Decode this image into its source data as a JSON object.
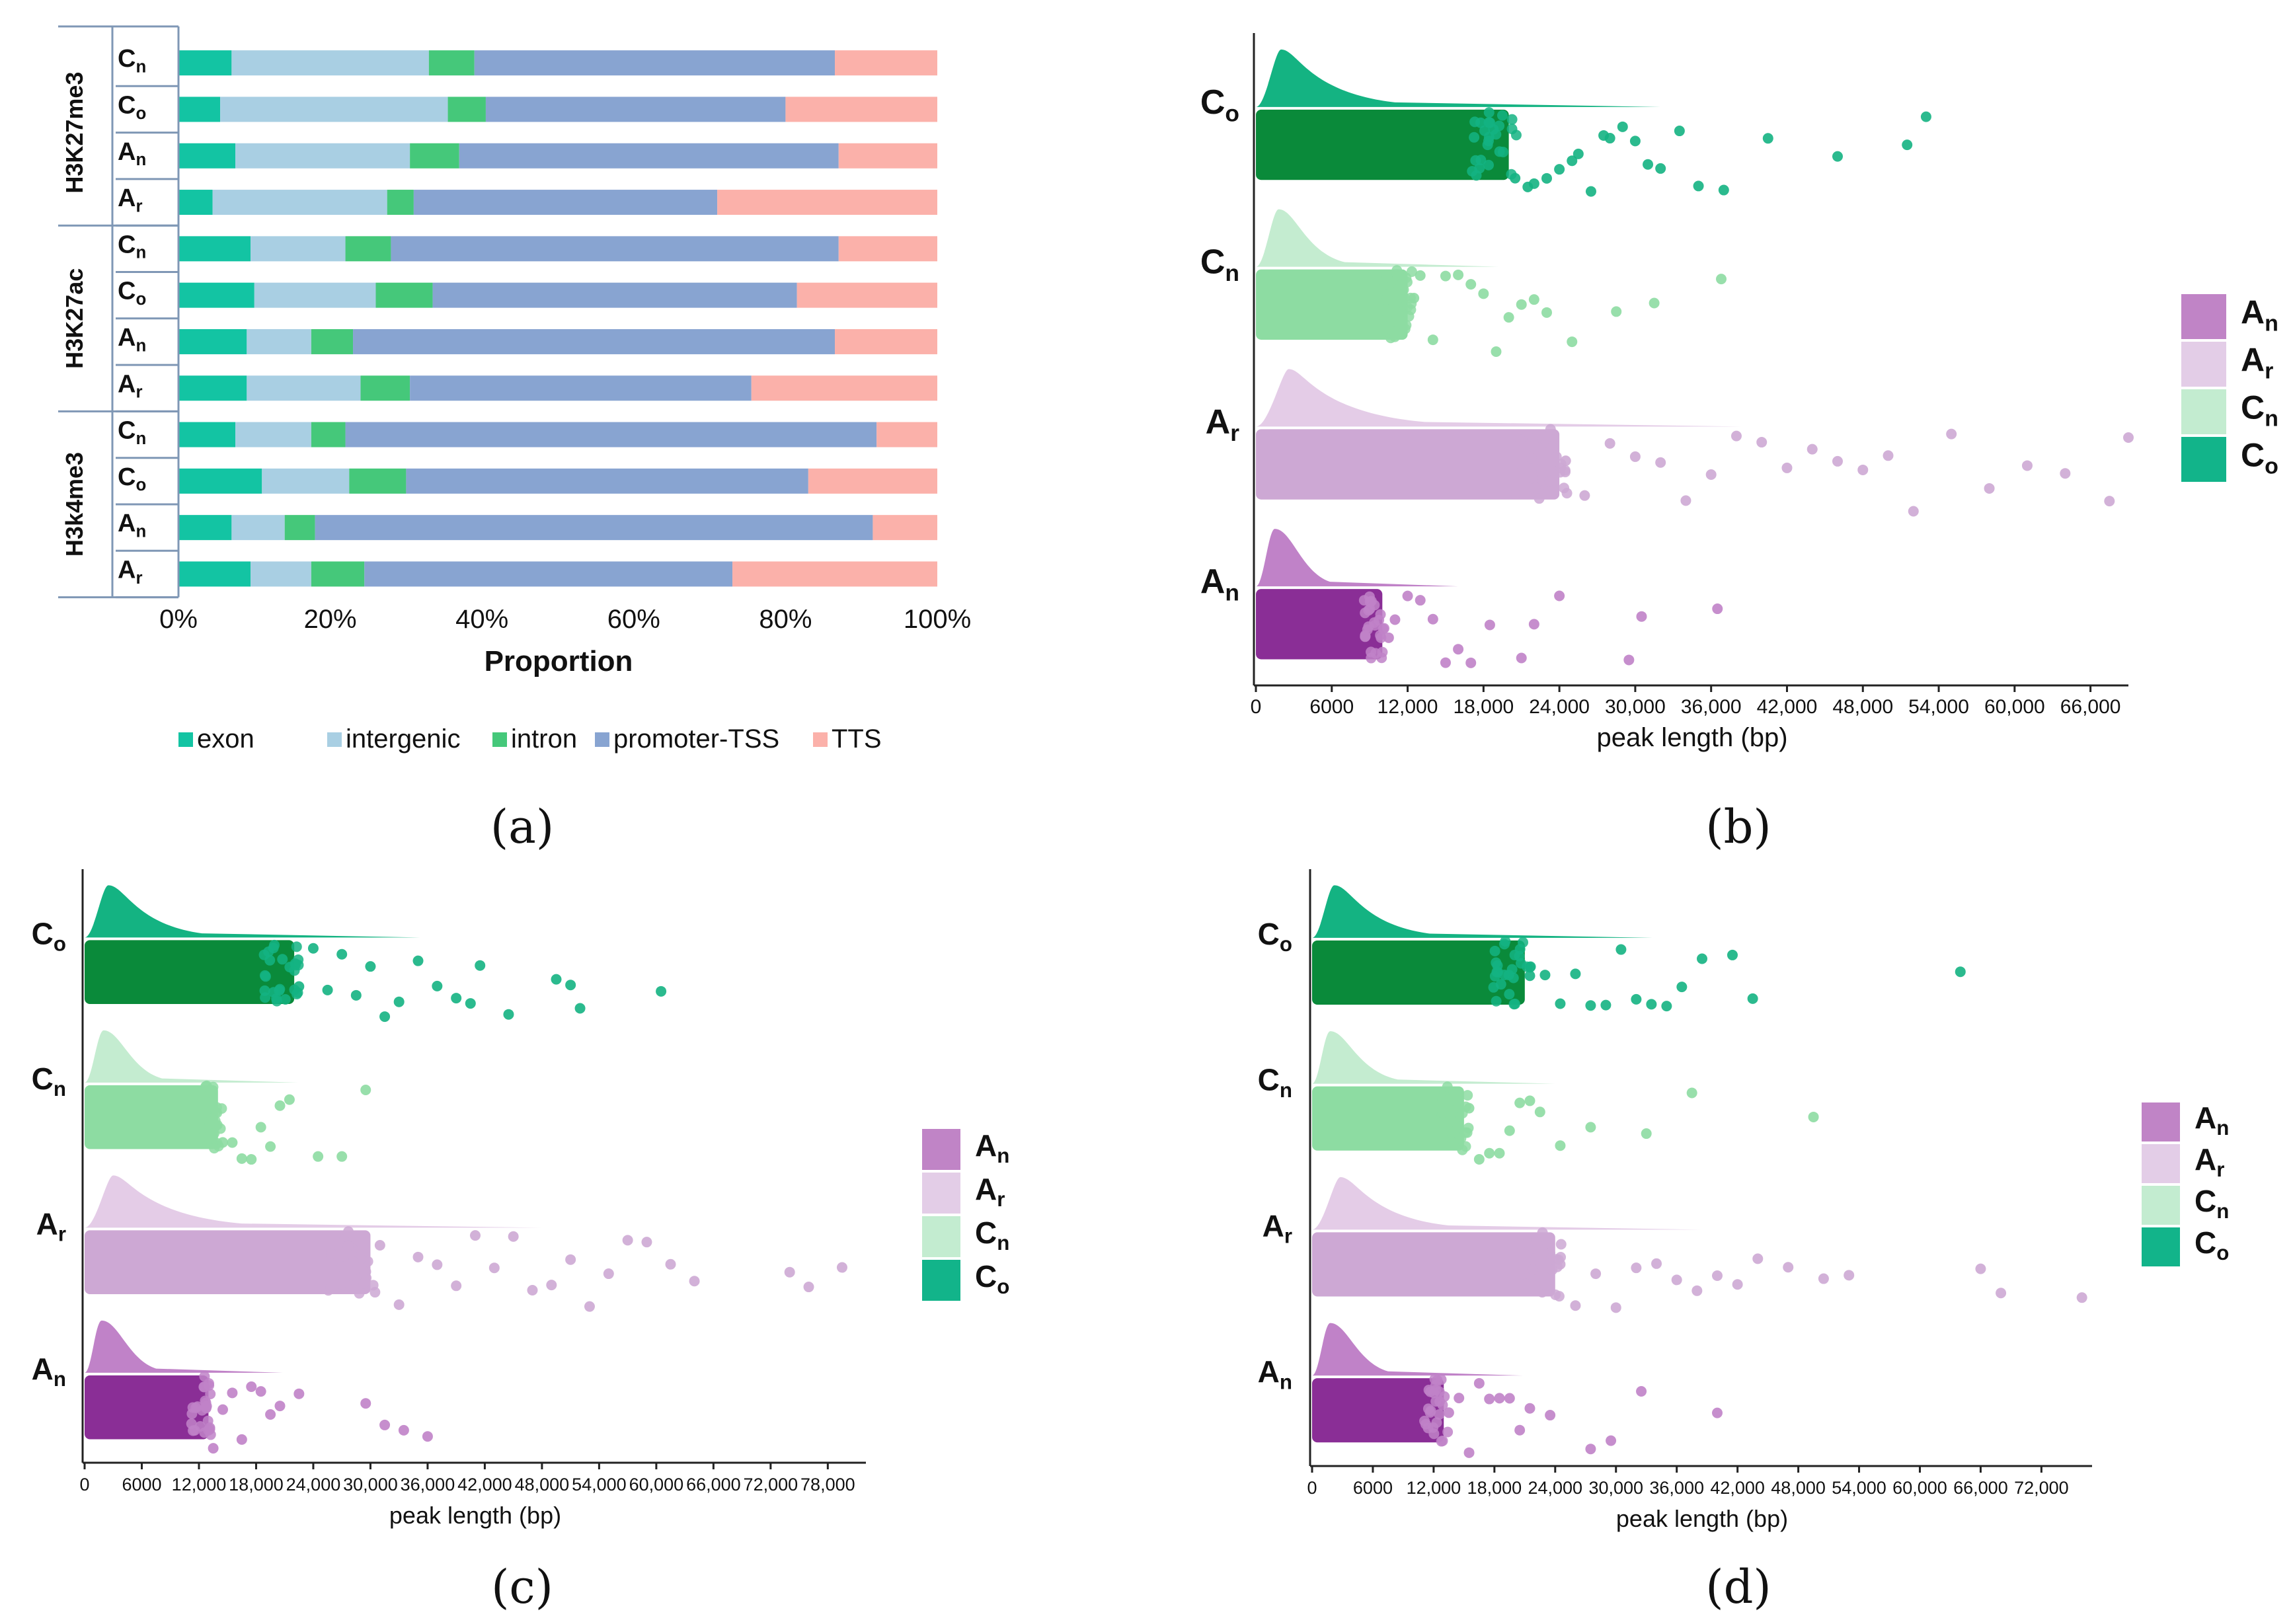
{
  "colors": {
    "exon": "#13c4a3",
    "intergenic": "#a9cfe3",
    "intron": "#45c87a",
    "promoter": "#88a4d1",
    "tts": "#fbb1aa",
    "Co": "#0a8a3a",
    "Co_light": "#14b382",
    "Cn": "#8ddca2",
    "Cn_light": "#c4ecd0",
    "Ar": "#cda8d4",
    "Ar_light": "#e4cce7",
    "An": "#8a2e96",
    "An_light": "#c082c8",
    "leg_An": "#c084c6",
    "leg_Ar": "#e3cde7",
    "leg_Cn": "#c3ecd0",
    "leg_Co": "#12b48a"
  },
  "panel_labels": {
    "a": "(a)",
    "b": "(b)",
    "c": "(c)",
    "d": "(d)"
  },
  "chart_data": [
    {
      "panel": "a",
      "type": "bar",
      "orientation": "horizontal-stacked-100",
      "xlabel": "Proportion",
      "xticks": [
        "0%",
        "20%",
        "40%",
        "60%",
        "80%",
        "100%"
      ],
      "xlim": [
        0,
        100
      ],
      "legend": [
        "exon",
        "intergenic",
        "intron",
        "promoter-TSS",
        "TTS"
      ],
      "legend_position": "bottom",
      "groups": [
        {
          "mark": "H3K27me3",
          "rows": [
            {
              "sample": "C",
              "sub": "n",
              "values": [
                7,
                26,
                6,
                47.5,
                13.5
              ]
            },
            {
              "sample": "C",
              "sub": "o",
              "values": [
                5.5,
                30,
                5,
                39.5,
                20
              ]
            },
            {
              "sample": "A",
              "sub": "n",
              "values": [
                7.5,
                23,
                6.5,
                50,
                13
              ]
            },
            {
              "sample": "A",
              "sub": "r",
              "values": [
                4.5,
                23,
                3.5,
                40,
                29
              ]
            }
          ]
        },
        {
          "mark": "H3K27ac",
          "rows": [
            {
              "sample": "C",
              "sub": "n",
              "values": [
                9.5,
                12.5,
                6,
                59,
                13
              ]
            },
            {
              "sample": "C",
              "sub": "o",
              "values": [
                10,
                16,
                7.5,
                48,
                18.5
              ]
            },
            {
              "sample": "A",
              "sub": "n",
              "values": [
                9,
                8.5,
                5.5,
                63.5,
                13.5
              ]
            },
            {
              "sample": "A",
              "sub": "r",
              "values": [
                9,
                15,
                6.5,
                45,
                24.5
              ]
            }
          ]
        },
        {
          "mark": "H3k4me3",
          "rows": [
            {
              "sample": "C",
              "sub": "n",
              "values": [
                7.5,
                10,
                4.5,
                70,
                8
              ]
            },
            {
              "sample": "C",
              "sub": "o",
              "values": [
                11,
                11.5,
                7.5,
                53,
                17
              ]
            },
            {
              "sample": "A",
              "sub": "n",
              "values": [
                7,
                7,
                4,
                73.5,
                8.5
              ]
            },
            {
              "sample": "A",
              "sub": "r",
              "values": [
                9.5,
                8,
                7,
                48.5,
                27
              ]
            }
          ]
        }
      ]
    },
    {
      "panel": "b",
      "type": "scatter",
      "subtype": "raincloud",
      "xlabel": "peak length (bp)",
      "xlim": [
        0,
        69000
      ],
      "xticks": [
        0,
        6000,
        12000,
        18000,
        24000,
        30000,
        36000,
        42000,
        48000,
        54000,
        60000,
        66000
      ],
      "xtick_labels": [
        "0",
        "6000",
        "12,000",
        "18,000",
        "24,000",
        "30,000",
        "36,000",
        "42,000",
        "48,000",
        "54,000",
        "60,000",
        "66,000"
      ],
      "legend": [
        {
          "sample": "A",
          "sub": "n"
        },
        {
          "sample": "A",
          "sub": "r"
        },
        {
          "sample": "C",
          "sub": "n"
        },
        {
          "sample": "C",
          "sub": "o"
        }
      ],
      "legend_position": "right",
      "groups": [
        {
          "sample": "C",
          "sub": "o",
          "dense_end": 20000,
          "mode": 2000,
          "outliers": [
            20500,
            21500,
            22000,
            23000,
            24000,
            25000,
            25500,
            26500,
            27500,
            28000,
            29000,
            30000,
            31000,
            32000,
            33500,
            35000,
            37000,
            40500,
            46000,
            51500,
            53000
          ]
        },
        {
          "sample": "C",
          "sub": "n",
          "dense_end": 12000,
          "mode": 1800,
          "outliers": [
            12500,
            13000,
            14000,
            15000,
            16000,
            17000,
            18000,
            19000,
            20000,
            21000,
            22000,
            23000,
            25000,
            28500,
            31500,
            36800
          ]
        },
        {
          "sample": "A",
          "sub": "r",
          "dense_end": 24000,
          "mode": 2600,
          "outliers": [
            24500,
            26000,
            28000,
            30000,
            32000,
            34000,
            36000,
            38000,
            40000,
            42000,
            44000,
            46000,
            48000,
            50000,
            52000,
            55000,
            58000,
            61000,
            64000,
            67500,
            69000
          ]
        },
        {
          "sample": "A",
          "sub": "n",
          "dense_end": 10000,
          "mode": 1500,
          "outliers": [
            10500,
            11000,
            12000,
            13000,
            14000,
            15000,
            16000,
            17000,
            18500,
            21000,
            22000,
            24000,
            29500,
            30500,
            36500
          ]
        }
      ]
    },
    {
      "panel": "c",
      "type": "scatter",
      "subtype": "raincloud",
      "xlabel": "peak length (bp)",
      "xlim": [
        0,
        82000
      ],
      "xticks": [
        0,
        6000,
        12000,
        18000,
        24000,
        30000,
        36000,
        42000,
        48000,
        54000,
        60000,
        66000,
        72000,
        78000
      ],
      "xtick_labels": [
        "0",
        "6000",
        "12,000",
        "18,000",
        "24,000",
        "30,000",
        "36,000",
        "42,000",
        "48,000",
        "54,000",
        "60,000",
        "66,000",
        "72,000",
        "78,000"
      ],
      "legend": [
        {
          "sample": "A",
          "sub": "n"
        },
        {
          "sample": "A",
          "sub": "r"
        },
        {
          "sample": "C",
          "sub": "n"
        },
        {
          "sample": "C",
          "sub": "o"
        }
      ],
      "legend_position": "right",
      "groups": [
        {
          "sample": "C",
          "sub": "o",
          "dense_end": 22000,
          "mode": 2500,
          "outliers": [
            22500,
            24000,
            25500,
            27000,
            28500,
            30000,
            31500,
            33000,
            35000,
            37000,
            39000,
            40500,
            41500,
            44500,
            49500,
            51000,
            52000,
            60500
          ]
        },
        {
          "sample": "C",
          "sub": "n",
          "dense_end": 14000,
          "mode": 2000,
          "outliers": [
            14500,
            15500,
            16500,
            17500,
            18500,
            19500,
            20500,
            21500,
            24500,
            27000,
            29500
          ]
        },
        {
          "sample": "A",
          "sub": "r",
          "dense_end": 30000,
          "mode": 3000,
          "outliers": [
            31000,
            33000,
            35000,
            37000,
            39000,
            41000,
            43000,
            45000,
            47000,
            49000,
            51000,
            53000,
            55000,
            57000,
            59000,
            61500,
            64000,
            74000,
            76000,
            79500
          ]
        },
        {
          "sample": "A",
          "sub": "n",
          "dense_end": 13000,
          "mode": 1800,
          "outliers": [
            13500,
            14500,
            15500,
            16500,
            17500,
            18500,
            19500,
            20500,
            22500,
            29500,
            31500,
            33500,
            36000
          ]
        }
      ]
    },
    {
      "panel": "d",
      "type": "scatter",
      "subtype": "raincloud",
      "xlabel": "peak length (bp)",
      "xlim": [
        0,
        77000
      ],
      "xticks": [
        0,
        6000,
        12000,
        18000,
        24000,
        30000,
        36000,
        42000,
        48000,
        54000,
        60000,
        66000,
        72000
      ],
      "xtick_labels": [
        "0",
        "6000",
        "12,000",
        "18,000",
        "24,000",
        "30,000",
        "36,000",
        "42,000",
        "48,000",
        "54,000",
        "60,000",
        "66,000",
        "72,000"
      ],
      "legend": [
        {
          "sample": "A",
          "sub": "n"
        },
        {
          "sample": "A",
          "sub": "r"
        },
        {
          "sample": "C",
          "sub": "n"
        },
        {
          "sample": "C",
          "sub": "o"
        }
      ],
      "legend_position": "right",
      "groups": [
        {
          "sample": "C",
          "sub": "o",
          "dense_end": 21000,
          "mode": 2200,
          "outliers": [
            21500,
            23000,
            24500,
            26000,
            27500,
            29000,
            30500,
            32000,
            33500,
            35000,
            36500,
            38500,
            41500,
            43500,
            64000
          ]
        },
        {
          "sample": "C",
          "sub": "n",
          "dense_end": 15000,
          "mode": 1800,
          "outliers": [
            15500,
            16500,
            17500,
            18500,
            19500,
            20500,
            21500,
            22500,
            24500,
            27500,
            33000,
            37500,
            49500
          ]
        },
        {
          "sample": "A",
          "sub": "r",
          "dense_end": 24000,
          "mode": 2800,
          "outliers": [
            24500,
            26000,
            28000,
            30000,
            32000,
            34000,
            36000,
            38000,
            40000,
            42000,
            44000,
            47000,
            50500,
            53000,
            66000,
            68000,
            76000
          ]
        },
        {
          "sample": "A",
          "sub": "n",
          "dense_end": 13000,
          "mode": 1800,
          "outliers": [
            13500,
            14500,
            15500,
            16500,
            17500,
            18500,
            19500,
            20500,
            21500,
            23500,
            27500,
            29500,
            32500,
            40000
          ]
        }
      ]
    }
  ]
}
